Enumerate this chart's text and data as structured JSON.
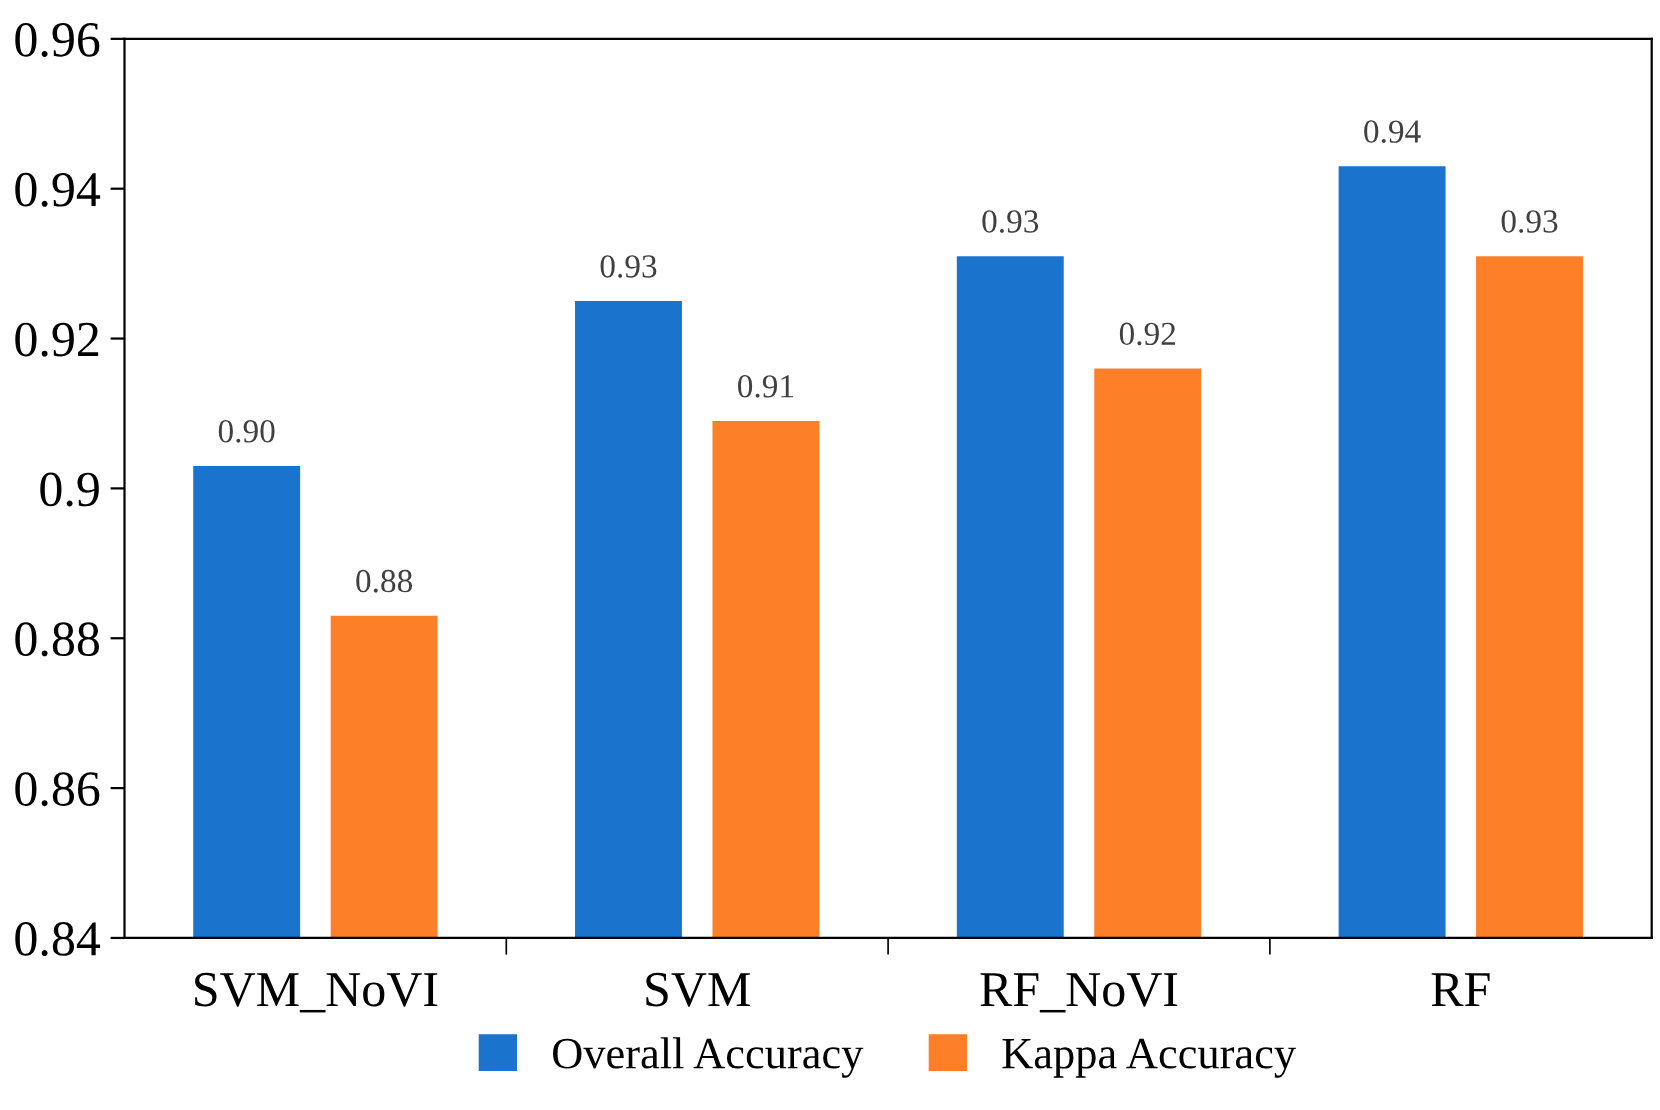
{
  "chart_data": {
    "type": "bar",
    "categories": [
      "SVM_NoVI",
      "SVM",
      "RF_NoVI",
      "RF"
    ],
    "series": [
      {
        "name": "Overall Accuracy",
        "color": "#1a73cc",
        "values": [
          0.903,
          0.925,
          0.931,
          0.943
        ],
        "value_labels": [
          "0.90",
          "0.93",
          "0.93",
          "0.94"
        ]
      },
      {
        "name": "Kappa Accuracy",
        "color": "#fd7f28",
        "values": [
          0.883,
          0.909,
          0.916,
          0.931
        ],
        "value_labels": [
          "0.88",
          "0.91",
          "0.92",
          "0.93"
        ]
      }
    ],
    "ylim": [
      0.84,
      0.96
    ],
    "yticks": [
      0.84,
      0.86,
      0.88,
      0.9,
      0.92,
      0.94,
      0.96
    ],
    "grid": false,
    "legend": "bottom"
  }
}
